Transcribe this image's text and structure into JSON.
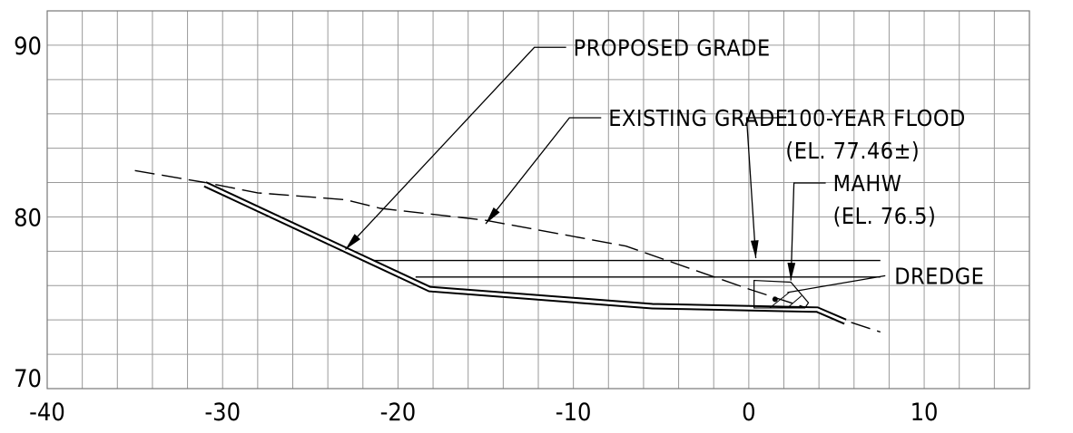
{
  "chart_data": {
    "type": "line",
    "xlim": [
      -40,
      16
    ],
    "ylim": [
      70,
      92
    ],
    "grid": true,
    "x_ticks": [
      {
        "value": -40,
        "label": "-40"
      },
      {
        "value": -30,
        "label": "-30"
      },
      {
        "value": -20,
        "label": "-20"
      },
      {
        "value": -10,
        "label": "-10"
      },
      {
        "value": 0,
        "label": "0"
      },
      {
        "value": 10,
        "label": "10"
      }
    ],
    "y_ticks": [
      {
        "value": 90,
        "label": "90"
      },
      {
        "value": 80,
        "label": "80"
      },
      {
        "value": 70,
        "label": "70"
      }
    ],
    "series": [
      {
        "name": "EXISTING GRADE",
        "style": "dashed",
        "x": [
          -35,
          -31,
          -28,
          -23,
          -21,
          -15,
          -7,
          0,
          7.5
        ],
        "y": [
          82.7,
          82,
          81.4,
          81,
          80.5,
          79.8,
          78.3,
          75.8,
          73.3
        ]
      },
      {
        "name": "PROPOSED GRADE",
        "style": "double-line",
        "x": [
          -31,
          -18.2,
          -5.5,
          3.9,
          5.5
        ],
        "y": [
          81.9,
          75.8,
          74.8,
          74.6,
          73.9
        ]
      },
      {
        "name": "100-YEAR FLOOD",
        "style": "level",
        "x": [
          -22,
          7.5
        ],
        "y": [
          77.46,
          77.46
        ]
      },
      {
        "name": "MAHW",
        "style": "level",
        "x": [
          -19,
          7.5
        ],
        "y": [
          76.5,
          76.5
        ]
      }
    ],
    "annotations": [
      {
        "key": "proposed",
        "lines": [
          "PROPOSED GRADE"
        ],
        "text_x": -10,
        "text_y": 89.4,
        "tip_x": -23,
        "tip_y": 78.1
      },
      {
        "key": "existing",
        "lines": [
          "EXISTING GRADE"
        ],
        "text_x": -8,
        "text_y": 85.3,
        "tip_x": -15,
        "tip_y": 79.6
      },
      {
        "key": "flood",
        "lines": [
          "100-YEAR FLOOD",
          "(EL.  77.46±)"
        ],
        "text_x": 2.1,
        "text_y": 85.3,
        "tip_x": 0.4,
        "tip_y": 77.6
      },
      {
        "key": "mahw",
        "lines": [
          "MAHW",
          "(EL.  76.5)"
        ],
        "text_x": 4.8,
        "text_y": 81.5,
        "tip_x": 2.4,
        "tip_y": 76.3
      },
      {
        "key": "dredge",
        "lines": [
          "DREDGE"
        ],
        "text_x": 8.3,
        "text_y": 76.1,
        "tip_x": 2.2,
        "tip_y": 75.6
      }
    ]
  }
}
